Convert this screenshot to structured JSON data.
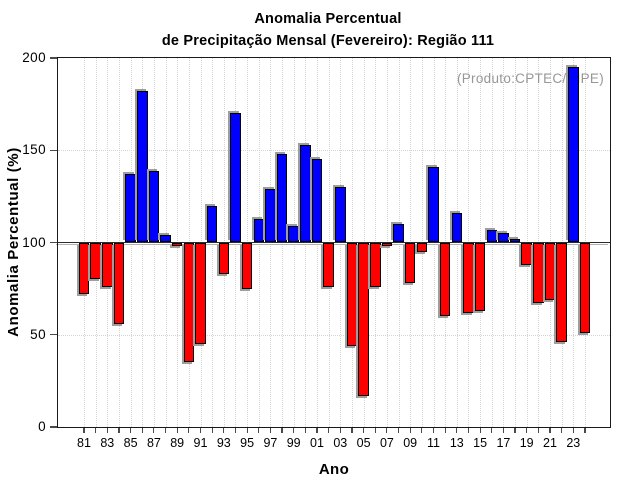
{
  "title": {
    "line1": "Anomalia Percentual",
    "line2": "de Precipitação Mensal (Fevereiro): Região 111"
  },
  "annotation": "(Produto:CPTEC/INPE)",
  "axes": {
    "y_label": "Anomalia Percentual (%)",
    "x_label": "Ano",
    "y_ticks": [
      0,
      50,
      100,
      150,
      200
    ],
    "x_tick_labels": [
      "81",
      "83",
      "85",
      "87",
      "89",
      "91",
      "93",
      "95",
      "97",
      "99",
      "01",
      "03",
      "05",
      "07",
      "09",
      "11",
      "13",
      "15",
      "17",
      "19",
      "21",
      "23"
    ]
  },
  "chart_data": {
    "type": "bar",
    "title": "Anomalia Percentual de Precipitação Mensal (Fevereiro): Região 111",
    "xlabel": "Ano",
    "ylabel": "Anomalia Percentual (%)",
    "ylim": [
      0,
      200
    ],
    "baseline": 100,
    "grid": "dotted; vertical line every year, horizontal lines at 50 and 150, solid line at 100",
    "legend_position": "none",
    "colors": {
      "above_baseline": "#0000ff",
      "below_baseline": "#ff0000",
      "shadow": "#9e9e9e",
      "annotation_gray": "#979797"
    },
    "x": [
      1981,
      1982,
      1983,
      1984,
      1985,
      1986,
      1987,
      1988,
      1989,
      1990,
      1991,
      1992,
      1993,
      1994,
      1995,
      1996,
      1997,
      1998,
      1999,
      2000,
      2001,
      2002,
      2003,
      2004,
      2005,
      2006,
      2007,
      2008,
      2009,
      2010,
      2011,
      2012,
      2013,
      2014,
      2015,
      2016,
      2017,
      2018,
      2019,
      2020,
      2021,
      2022,
      2023,
      2024
    ],
    "values": [
      72,
      80,
      76,
      56,
      137,
      182,
      139,
      104,
      98,
      35,
      45,
      120,
      83,
      170,
      75,
      113,
      129,
      148,
      109,
      153,
      145,
      76,
      130,
      44,
      17,
      76,
      98,
      110,
      78,
      95,
      141,
      60,
      116,
      62,
      63,
      107,
      105,
      102,
      88,
      67,
      69,
      46,
      195,
      51
    ]
  }
}
